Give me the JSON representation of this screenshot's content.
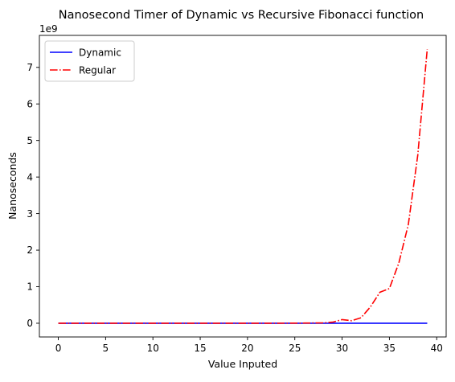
{
  "chart_data": {
    "type": "line",
    "title": "Nanosecond Timer of Dynamic vs Recursive Fibonacci function",
    "xlabel": "Value Inputed",
    "ylabel": "Nanoseconds",
    "y_offset_label": "1e9",
    "xlim": [
      -2,
      41
    ],
    "ylim": [
      -0.375,
      7.875
    ],
    "y_scale_factor": 1000000000,
    "x_ticks": [
      0,
      5,
      10,
      15,
      20,
      25,
      30,
      35,
      40
    ],
    "x_tick_labels": [
      "0",
      "5",
      "10",
      "15",
      "20",
      "25",
      "30",
      "35",
      "40"
    ],
    "y_ticks": [
      0,
      1,
      2,
      3,
      4,
      5,
      6,
      7
    ],
    "y_tick_labels": [
      "0",
      "1",
      "2",
      "3",
      "4",
      "5",
      "6",
      "7"
    ],
    "grid": false,
    "legend_position": "top-left",
    "x": [
      0,
      1,
      2,
      3,
      4,
      5,
      6,
      7,
      8,
      9,
      10,
      11,
      12,
      13,
      14,
      15,
      16,
      17,
      18,
      19,
      20,
      21,
      22,
      23,
      24,
      25,
      26,
      27,
      28,
      29,
      30,
      31,
      32,
      33,
      34,
      35,
      36,
      37,
      38,
      39
    ],
    "series": [
      {
        "name": "Dynamic",
        "color": "#0000ff",
        "style": "solid",
        "values": [
          0,
          0,
          0,
          0,
          0,
          0,
          0,
          0,
          0,
          0,
          0,
          0,
          0,
          0,
          0,
          0,
          0,
          0,
          0,
          0,
          0,
          0,
          0,
          0,
          0,
          0,
          0,
          0,
          0,
          0,
          0,
          0,
          0,
          0,
          0,
          0,
          0,
          0,
          0,
          0
        ]
      },
      {
        "name": "Regular",
        "color": "#ff0000",
        "style": "dashdot",
        "values": [
          0,
          0,
          0,
          0,
          0,
          0,
          0,
          0,
          0,
          0,
          0,
          0,
          0,
          0,
          0,
          0,
          0,
          0,
          0,
          0,
          0,
          0,
          0,
          0.001,
          0.002,
          0.003,
          0.005,
          0.008,
          0.012,
          0.03,
          0.1,
          0.07,
          0.15,
          0.45,
          0.85,
          0.95,
          1.65,
          2.7,
          4.6,
          7.5
        ]
      }
    ]
  }
}
